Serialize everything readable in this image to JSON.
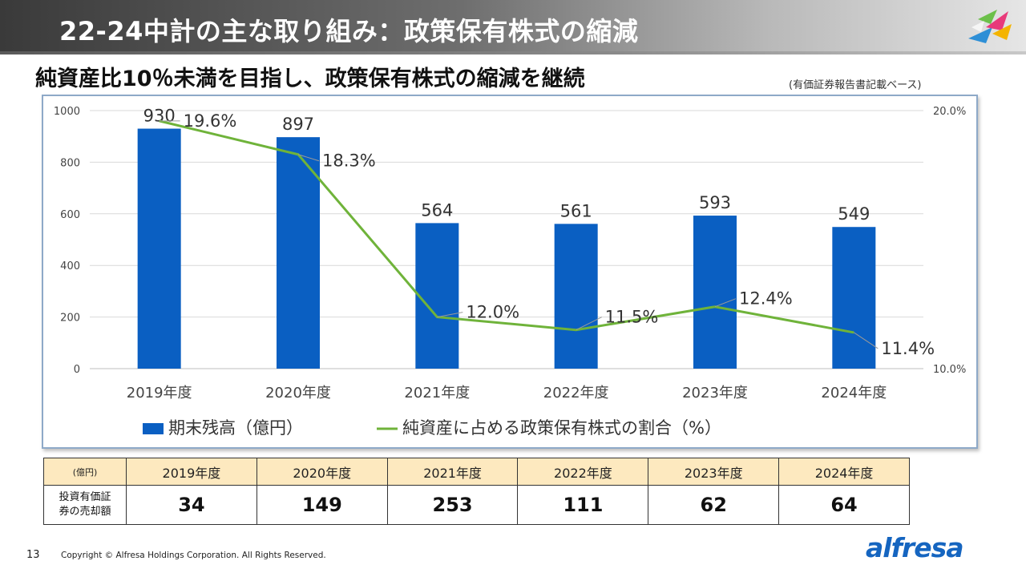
{
  "header": {
    "title": "22-24中計の主な取り組み：政策保有株式の縮減",
    "subtitle": "純資産比10％未満を目指し、政策保有株式の縮減を継続",
    "note": "(有価証券報告書記載ベース)"
  },
  "chart_data": {
    "type": "bar",
    "categories": [
      "2019年度",
      "2020年度",
      "2021年度",
      "2022年度",
      "2023年度",
      "2024年度"
    ],
    "series": [
      {
        "name": "期末残高（億円）",
        "type": "bar",
        "axis": "left",
        "values": [
          930,
          897,
          564,
          561,
          593,
          549
        ],
        "labels": [
          "930",
          "897",
          "564",
          "561",
          "593",
          "549"
        ],
        "color": "#0a5fc2"
      },
      {
        "name": "純資産に占める政策保有株式の割合（%）",
        "type": "line",
        "axis": "right",
        "values": [
          19.6,
          18.3,
          12.0,
          11.5,
          12.4,
          11.4
        ],
        "labels": [
          "19.6%",
          "18.3%",
          "12.0%",
          "11.5%",
          "12.4%",
          "11.4%"
        ],
        "color": "#6fb33a"
      }
    ],
    "y_left": {
      "ylim": [
        0,
        1000
      ],
      "ticks": [
        "0",
        "200",
        "400",
        "600",
        "800",
        "1000"
      ]
    },
    "y_right": {
      "ylim": [
        10.0,
        20.0
      ],
      "ticks": [
        "10.0%",
        "20.0%"
      ]
    },
    "grid": true,
    "legend": "bottom"
  },
  "sales_table": {
    "unit": "(億円)",
    "years": [
      "2019年度",
      "2020年度",
      "2021年度",
      "2022年度",
      "2023年度",
      "2024年度"
    ],
    "row_label_line1": "投資有価証",
    "row_label_line2": "券の売却額",
    "values": [
      "34",
      "149",
      "253",
      "111",
      "62",
      "64"
    ]
  },
  "footer": {
    "page": "13",
    "copyright": "Copyright © Alfresa Holdings Corporation. All Rights Reserved.",
    "brand": "alfresa"
  },
  "colors": {
    "bar": "#0a5fc2",
    "line": "#6fb33a",
    "table_header": "#fde9bf",
    "frame": "#8ea9c8"
  }
}
